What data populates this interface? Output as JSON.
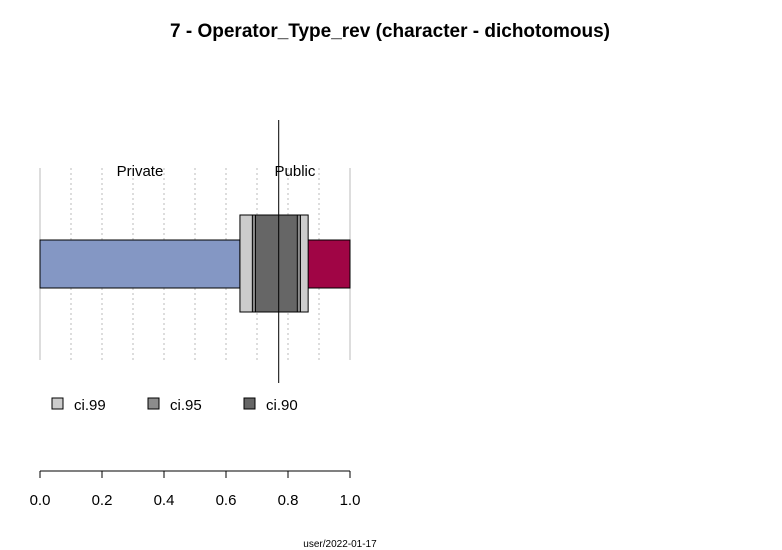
{
  "chart_data": {
    "type": "bar",
    "title": "7 - Operator_Type_rev (character - dichotomous)",
    "categories": [
      "Private",
      "Public"
    ],
    "values": [
      0.645,
      0.355
    ],
    "colors": {
      "Private": "#8497C4",
      "Public": "#A00545"
    },
    "estimate": 0.77,
    "confidence_intervals": [
      {
        "name": "ci.99",
        "low": 0.645,
        "high": 0.865,
        "color": "#CCCCCC"
      },
      {
        "name": "ci.95",
        "low": 0.685,
        "high": 0.84,
        "color": "#8C8C8C"
      },
      {
        "name": "ci.90",
        "low": 0.695,
        "high": 0.83,
        "color": "#666666"
      }
    ],
    "xlim": [
      0,
      1
    ],
    "xticks": [
      "0.0",
      "0.2",
      "0.4",
      "0.6",
      "0.8",
      "1.0"
    ],
    "xtick_values": [
      0,
      0.2,
      0.4,
      0.6,
      0.8,
      1.0
    ],
    "grid_values": [
      0.1,
      0.2,
      0.3,
      0.4,
      0.5,
      0.6,
      0.7,
      0.8,
      0.9,
      1.0
    ],
    "grid": true,
    "legend_position": "bottom-left"
  },
  "footer": {
    "text": "user/2022-01-17"
  }
}
